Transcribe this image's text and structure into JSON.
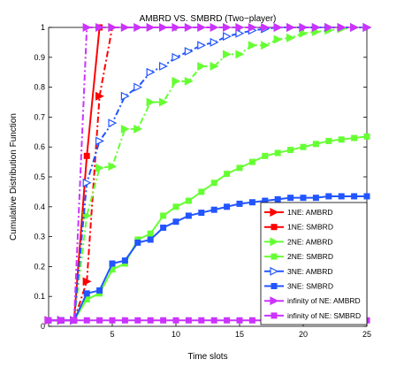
{
  "chart_data": {
    "type": "line",
    "title": "AMBRD VS. SMBRD (Two−player)",
    "xlabel": "Time slots",
    "ylabel": "Cumulative Distribution Function",
    "xlim": [
      0,
      25
    ],
    "ylim": [
      0,
      1
    ],
    "x_ticks": [
      "5",
      "10",
      "15",
      "20",
      "25"
    ],
    "y_ticks": [
      "0",
      "0.1",
      "0.2",
      "0.3",
      "0.4",
      "0.5",
      "0.6",
      "0.7",
      "0.8",
      "0.9",
      "1"
    ],
    "legend_position": "lower-right",
    "series": [
      {
        "name": "1NE: AMBRD",
        "color": "#ff0000",
        "line": "dashdot",
        "marker": "triangle-right",
        "marker_fill": "#ff0000",
        "marker_edge": "#ff0000",
        "x": [
          0,
          1,
          2,
          3,
          4,
          5
        ],
        "y": [
          0.02,
          0.02,
          0.02,
          0.15,
          0.77,
          1.0
        ]
      },
      {
        "name": "1NE: SMBRD",
        "color": "#ff0000",
        "line": "solid",
        "marker": "square",
        "marker_fill": "#ff0000",
        "marker_edge": "#ff0000",
        "x": [
          0,
          1,
          2,
          3,
          4
        ],
        "y": [
          0.02,
          0.02,
          0.02,
          0.57,
          1.0
        ]
      },
      {
        "name": "2NE: AMBRD",
        "color": "#66ff33",
        "line": "dashdot",
        "marker": "triangle-right",
        "marker_fill": "#66ff33",
        "marker_edge": "#66ff33",
        "x": [
          1,
          2,
          3,
          4,
          5,
          6,
          7,
          8,
          9,
          10,
          11,
          12,
          13,
          14,
          15,
          16,
          17,
          18,
          19,
          20,
          21,
          22,
          23,
          24,
          25
        ],
        "y": [
          0.02,
          0.02,
          0.37,
          0.53,
          0.535,
          0.66,
          0.66,
          0.75,
          0.75,
          0.82,
          0.82,
          0.87,
          0.87,
          0.91,
          0.91,
          0.94,
          0.94,
          0.96,
          0.965,
          0.98,
          0.985,
          0.99,
          0.995,
          1.0,
          1.0
        ]
      },
      {
        "name": "2NE: SMBRD",
        "color": "#66ff33",
        "line": "solid",
        "marker": "square",
        "marker_fill": "#66ff33",
        "marker_edge": "#66ff33",
        "x": [
          0,
          1,
          2,
          3,
          4,
          5,
          6,
          7,
          8,
          9,
          10,
          11,
          12,
          13,
          14,
          15,
          16,
          17,
          18,
          19,
          20,
          21,
          22,
          23,
          24,
          25
        ],
        "y": [
          0.02,
          0.02,
          0.02,
          0.09,
          0.11,
          0.19,
          0.21,
          0.29,
          0.31,
          0.37,
          0.4,
          0.42,
          0.45,
          0.48,
          0.51,
          0.53,
          0.55,
          0.57,
          0.58,
          0.59,
          0.6,
          0.61,
          0.62,
          0.625,
          0.63,
          0.635
        ]
      },
      {
        "name": "3NE: AMBRD",
        "color": "#2255ff",
        "line": "dashdot",
        "marker": "triangle-right",
        "marker_fill": "#ffffff",
        "marker_edge": "#2255ff",
        "x": [
          1,
          2,
          3,
          4,
          5,
          6,
          7,
          8,
          9,
          10,
          11,
          12,
          13,
          14,
          15,
          16,
          17,
          18,
          19,
          20,
          21,
          22,
          23,
          24,
          25
        ],
        "y": [
          0.02,
          0.02,
          0.48,
          0.62,
          0.68,
          0.77,
          0.8,
          0.85,
          0.87,
          0.9,
          0.92,
          0.94,
          0.95,
          0.97,
          0.98,
          0.99,
          0.995,
          1.0,
          1.0,
          1.0,
          1.0,
          1.0,
          1.0,
          1.0,
          1.0
        ]
      },
      {
        "name": "3NE: SMBRD",
        "color": "#2255ff",
        "line": "solid",
        "marker": "square",
        "marker_fill": "#2255ff",
        "marker_edge": "#2255ff",
        "x": [
          0,
          1,
          2,
          3,
          4,
          5,
          6,
          7,
          8,
          9,
          10,
          11,
          12,
          13,
          14,
          15,
          16,
          17,
          18,
          19,
          20,
          21,
          22,
          23,
          24,
          25
        ],
        "y": [
          0.02,
          0.02,
          0.02,
          0.11,
          0.12,
          0.21,
          0.22,
          0.28,
          0.29,
          0.33,
          0.35,
          0.37,
          0.38,
          0.39,
          0.4,
          0.41,
          0.415,
          0.42,
          0.425,
          0.43,
          0.43,
          0.43,
          0.435,
          0.435,
          0.435,
          0.435
        ]
      },
      {
        "name": "infinity of NE: AMBRD",
        "color": "#cc33ff",
        "line": "dashdot",
        "marker": "triangle-right",
        "marker_fill": "#cc33ff",
        "marker_edge": "#cc33ff",
        "x": [
          0,
          1,
          2,
          3,
          4,
          5,
          6,
          7,
          8,
          9,
          10,
          11,
          12,
          13,
          14,
          15,
          16,
          17,
          18,
          19,
          20,
          21,
          22,
          23,
          24,
          25
        ],
        "y": [
          0.02,
          0.02,
          0.02,
          1.0,
          1.0,
          1.0,
          1.0,
          1.0,
          1.0,
          1.0,
          1.0,
          1.0,
          1.0,
          1.0,
          1.0,
          1.0,
          1.0,
          1.0,
          1.0,
          1.0,
          1.0,
          1.0,
          1.0,
          1.0,
          1.0,
          1.0
        ]
      },
      {
        "name": "infinity of NE: SMBRD",
        "color": "#cc33ff",
        "line": "solid",
        "marker": "square",
        "marker_fill": "#cc33ff",
        "marker_edge": "#cc33ff",
        "x": [
          0,
          1,
          2,
          3,
          4,
          5,
          6,
          7,
          8,
          9,
          10,
          11,
          12,
          13,
          14,
          15,
          16,
          17,
          18,
          19,
          20,
          21,
          22,
          23,
          24,
          25
        ],
        "y": [
          0.02,
          0.02,
          0.02,
          0.02,
          0.02,
          0.02,
          0.02,
          0.02,
          0.02,
          0.02,
          0.02,
          0.02,
          0.02,
          0.02,
          0.02,
          0.02,
          0.02,
          0.02,
          0.02,
          0.02,
          0.02,
          0.02,
          0.02,
          0.02,
          0.02,
          0.02
        ]
      }
    ]
  }
}
